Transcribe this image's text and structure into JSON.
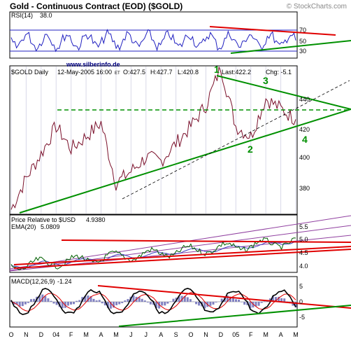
{
  "header": {
    "title": "Gold - Continuous Contract (EOD) ($GOLD)",
    "copyright": "© StockCharts.com"
  },
  "watermark": "www.silberinfo.de",
  "colors": {
    "price_line": "#7a0f2a",
    "green": "#009000",
    "red": "#e00000",
    "blue": "#2020c0",
    "grid": "#d8d8e8"
  },
  "rsi": {
    "label": "RSI(14)",
    "value": "38.0",
    "ticks": [
      "70",
      "50",
      "30"
    ]
  },
  "price": {
    "label": "$GOLD Daily",
    "date": "12-May-2005 16:00",
    "et": "ET",
    "open": "O:427.5",
    "high": "H:427.7",
    "low": "L:420.8",
    "last": "Last:422.2",
    "change": "Chg: -5.1",
    "ticks": [
      "440",
      "420",
      "400",
      "380"
    ],
    "waves": [
      "1",
      "2",
      "3",
      "4"
    ]
  },
  "relative": {
    "label": "Price Relative to $USD",
    "value": "4.9380",
    "ema_label": "EMA(20)",
    "ema_value": "5.0809",
    "ticks": [
      "5.5",
      "5.0",
      "4.5",
      "4.0"
    ]
  },
  "macd": {
    "label": "MACD(12,26,9)",
    "value": "-1.24",
    "ticks": [
      "5",
      "0",
      "-5"
    ]
  },
  "x_axis": [
    "O",
    "N",
    "D",
    "04",
    "F",
    "M",
    "A",
    "M",
    "J",
    "J",
    "A",
    "S",
    "O",
    "N",
    "D",
    "05",
    "F",
    "M",
    "A",
    "M"
  ],
  "chart_data": [
    {
      "type": "line",
      "title": "RSI(14) 38.0",
      "ylim": [
        0,
        100
      ],
      "reference_lines": [
        70,
        50,
        30
      ],
      "series": [
        {
          "name": "RSI(14)",
          "current": 38.0
        }
      ]
    },
    {
      "type": "line",
      "title": "$GOLD Daily 12-May-2005",
      "ylim": [
        368,
        452
      ],
      "x": [
        "O",
        "N",
        "D",
        "04",
        "F",
        "M",
        "A",
        "M",
        "J",
        "J",
        "A",
        "S",
        "O",
        "N",
        "D",
        "05",
        "F",
        "M",
        "A",
        "M"
      ],
      "series": [
        {
          "values": [
            370,
            388,
            402,
            418,
            405,
            412,
            420,
            385,
            392,
            400,
            398,
            408,
            418,
            430,
            452,
            418,
            412,
            434,
            428,
            422
          ]
        }
      ],
      "ohlc_last": {
        "open": 427.5,
        "high": 427.7,
        "low": 420.8,
        "close": 422.2,
        "change": -5.1
      },
      "wave_labels": [
        "1",
        "2",
        "3",
        "4"
      ]
    },
    {
      "type": "line",
      "title": "Price Relative to $USD 4.9380",
      "ylim": [
        3.75,
        5.9
      ],
      "series": [
        {
          "name": "Price Relative to $USD",
          "current": 4.938
        },
        {
          "name": "EMA(20)",
          "current": 5.0809
        }
      ]
    },
    {
      "type": "line",
      "title": "MACD(12,26,9) -1.24",
      "ylim": [
        -7,
        8
      ],
      "series": [
        {
          "name": "MACD(12,26,9)",
          "current": -1.24
        }
      ]
    }
  ]
}
